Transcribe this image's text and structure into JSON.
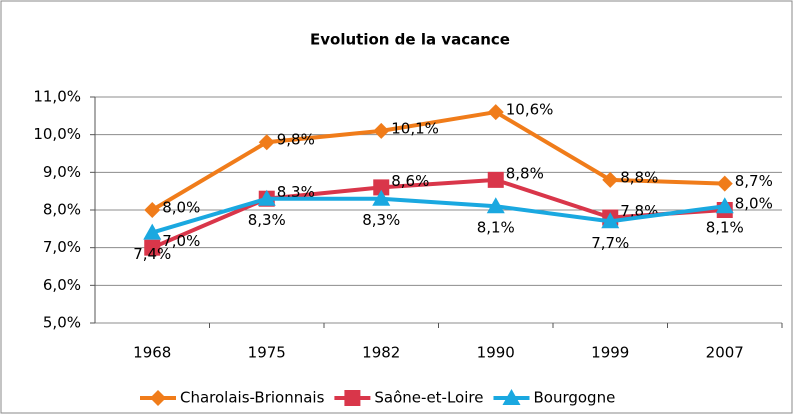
{
  "chart_data": {
    "type": "line",
    "title": "Evolution de la vacance",
    "categories": [
      "1968",
      "1975",
      "1982",
      "1990",
      "1999",
      "2007"
    ],
    "series": [
      {
        "name": "Charolais-Brionnais",
        "color": "#f07c1a",
        "marker": "diamond",
        "values": [
          8.0,
          9.8,
          10.1,
          10.6,
          8.8,
          8.7
        ],
        "value_labels": [
          "8,0%",
          "9,8%",
          "10,1%",
          "10,6%",
          "8,8%",
          "8,7%"
        ]
      },
      {
        "name": "Saône-et-Loire",
        "color": "#d9364a",
        "marker": "square",
        "values": [
          7.0,
          8.3,
          8.6,
          8.8,
          7.8,
          8.0
        ],
        "value_labels": [
          "7,0%",
          "8,3%",
          "8,6%",
          "8,8%",
          "7,8%",
          "8,0%"
        ]
      },
      {
        "name": "Bourgogne",
        "color": "#1aa8e0",
        "marker": "triangle",
        "values": [
          7.4,
          8.3,
          8.3,
          8.1,
          7.7,
          8.1
        ],
        "value_labels": [
          "7,4%",
          "8,3%",
          "8,3%",
          "8,1%",
          "7,7%",
          "8,1%"
        ]
      }
    ],
    "ylim": [
      5,
      11
    ],
    "yticks": [
      {
        "value": 5,
        "label": "5,0%"
      },
      {
        "value": 6,
        "label": "6,0%"
      },
      {
        "value": 7,
        "label": "7,0%"
      },
      {
        "value": 8,
        "label": "8,0%"
      },
      {
        "value": 9,
        "label": "9,0%"
      },
      {
        "value": 10,
        "label": "10,0%"
      },
      {
        "value": 11,
        "label": "11,0%"
      }
    ],
    "grid": true,
    "legend": "bottom"
  }
}
